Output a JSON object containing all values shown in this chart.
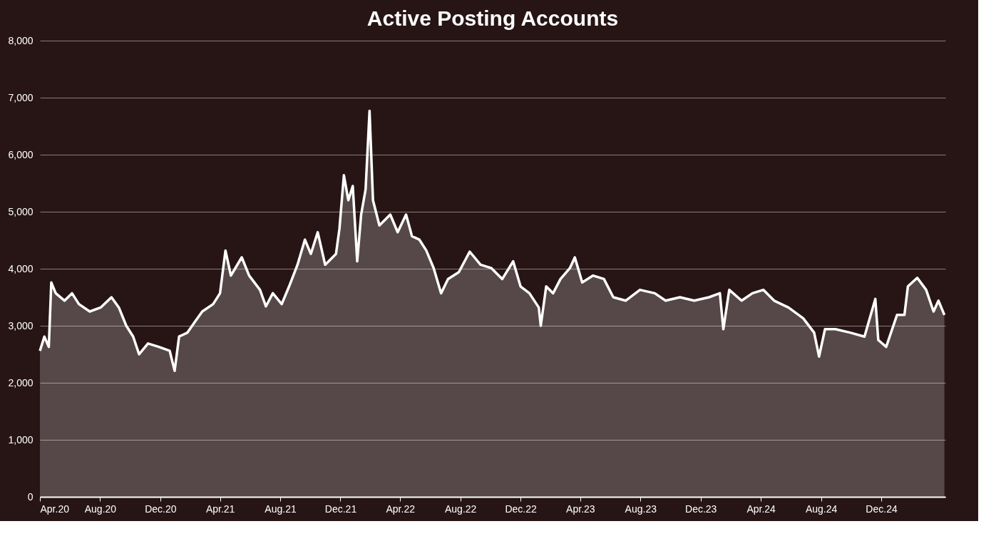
{
  "chart_data": {
    "type": "area",
    "title": "Active Posting Accounts",
    "x": [
      "2020-04-01",
      "2020-04-10",
      "2020-04-19",
      "2020-04-24",
      "2020-05-03",
      "2020-05-21",
      "2020-06-05",
      "2020-06-19",
      "2020-07-11",
      "2020-08-02",
      "2020-08-24",
      "2020-09-08",
      "2020-09-23",
      "2020-10-07",
      "2020-10-19",
      "2020-11-06",
      "2020-11-28",
      "2020-12-20",
      "2020-12-30",
      "2021-01-08",
      "2021-01-25",
      "2021-02-09",
      "2021-02-24",
      "2021-03-18",
      "2021-04-01",
      "2021-04-12",
      "2021-04-23",
      "2021-05-15",
      "2021-05-30",
      "2021-06-21",
      "2021-07-03",
      "2021-07-17",
      "2021-08-04",
      "2021-08-19",
      "2021-09-05",
      "2021-09-20",
      "2021-10-02",
      "2021-10-16",
      "2021-10-31",
      "2021-11-22",
      "2021-11-29",
      "2021-12-08",
      "2021-12-17",
      "2021-12-26",
      "2022-01-04",
      "2022-01-12",
      "2022-01-21",
      "2022-01-29",
      "2022-02-05",
      "2022-02-18",
      "2022-03-12",
      "2022-03-27",
      "2022-04-13",
      "2022-04-25",
      "2022-05-10",
      "2022-05-24",
      "2022-06-08",
      "2022-06-23",
      "2022-07-07",
      "2022-07-29",
      "2022-08-20",
      "2022-09-11",
      "2022-10-03",
      "2022-10-25",
      "2022-11-16",
      "2022-12-01",
      "2022-12-19",
      "2023-01-07",
      "2023-01-11",
      "2023-01-22",
      "2023-02-05",
      "2023-02-20",
      "2023-03-11",
      "2023-03-21",
      "2023-04-05",
      "2023-04-27",
      "2023-05-19",
      "2023-06-07",
      "2023-07-02",
      "2023-07-31",
      "2023-08-30",
      "2023-09-21",
      "2023-10-20",
      "2023-11-18",
      "2023-12-18",
      "2024-01-09",
      "2024-01-16",
      "2024-01-28",
      "2024-02-22",
      "2024-03-15",
      "2024-04-06",
      "2024-04-28",
      "2024-05-27",
      "2024-06-26",
      "2024-07-18",
      "2024-07-28",
      "2024-08-09",
      "2024-08-30",
      "2024-09-29",
      "2024-10-28",
      "2024-11-19",
      "2024-11-25",
      "2024-12-11",
      "2025-01-02",
      "2025-01-17",
      "2025-01-24",
      "2025-02-12",
      "2025-03-02",
      "2025-03-17",
      "2025-03-27",
      "2025-04-08"
    ],
    "series": [
      {
        "color": "#ffffff",
        "values": [
          2560,
          2810,
          2630,
          3760,
          3570,
          3440,
          3570,
          3380,
          3250,
          3320,
          3500,
          3320,
          3000,
          2810,
          2500,
          2690,
          2630,
          2560,
          2210,
          2810,
          2880,
          3070,
          3250,
          3380,
          3570,
          4320,
          3880,
          4200,
          3880,
          3630,
          3340,
          3570,
          3380,
          3690,
          4070,
          4510,
          4260,
          4640,
          4070,
          4260,
          4700,
          5640,
          5200,
          5450,
          4130,
          4950,
          5390,
          6770,
          5200,
          4760,
          4950,
          4640,
          4950,
          4570,
          4510,
          4320,
          4010,
          3570,
          3820,
          3940,
          4300,
          4070,
          4010,
          3820,
          4130,
          3690,
          3570,
          3320,
          3000,
          3690,
          3570,
          3820,
          4010,
          4200,
          3760,
          3880,
          3820,
          3500,
          3440,
          3630,
          3570,
          3440,
          3500,
          3440,
          3500,
          3570,
          2940,
          3630,
          3440,
          3570,
          3630,
          3440,
          3320,
          3130,
          2880,
          2460,
          2940,
          2940,
          2880,
          2810,
          3470,
          2750,
          2630,
          3190,
          3190,
          3690,
          3840,
          3630,
          3250,
          3440,
          3190
        ]
      }
    ],
    "xlim": [
      "2020-04-01",
      "2025-04-10"
    ],
    "xticks": [
      {
        "value": "2020-04-01",
        "label": "Apr.20"
      },
      {
        "value": "2020-08-01",
        "label": "Aug.20"
      },
      {
        "value": "2020-12-01",
        "label": "Dec.20"
      },
      {
        "value": "2021-04-01",
        "label": "Apr.21"
      },
      {
        "value": "2021-08-01",
        "label": "Aug.21"
      },
      {
        "value": "2021-12-01",
        "label": "Dec.21"
      },
      {
        "value": "2022-04-01",
        "label": "Apr.22"
      },
      {
        "value": "2022-08-01",
        "label": "Aug.22"
      },
      {
        "value": "2022-12-01",
        "label": "Dec.22"
      },
      {
        "value": "2023-04-01",
        "label": "Apr.23"
      },
      {
        "value": "2023-08-01",
        "label": "Aug.23"
      },
      {
        "value": "2023-12-01",
        "label": "Dec.23"
      },
      {
        "value": "2024-04-01",
        "label": "Apr.24"
      },
      {
        "value": "2024-08-01",
        "label": "Aug.24"
      },
      {
        "value": "2024-12-01",
        "label": "Dec.24"
      }
    ],
    "ylim": [
      0,
      8000
    ],
    "yticks": [
      {
        "value": 0,
        "label": "0"
      },
      {
        "value": 1000,
        "label": "1,000"
      },
      {
        "value": 2000,
        "label": "2,000"
      },
      {
        "value": 3000,
        "label": "3,000"
      },
      {
        "value": 4000,
        "label": "4,000"
      },
      {
        "value": 5000,
        "label": "5,000"
      },
      {
        "value": 6000,
        "label": "6,000"
      },
      {
        "value": 7000,
        "label": "7,000"
      },
      {
        "value": 8000,
        "label": "8,000"
      }
    ],
    "grid": "y",
    "marker": "none",
    "line_style": "solid"
  }
}
